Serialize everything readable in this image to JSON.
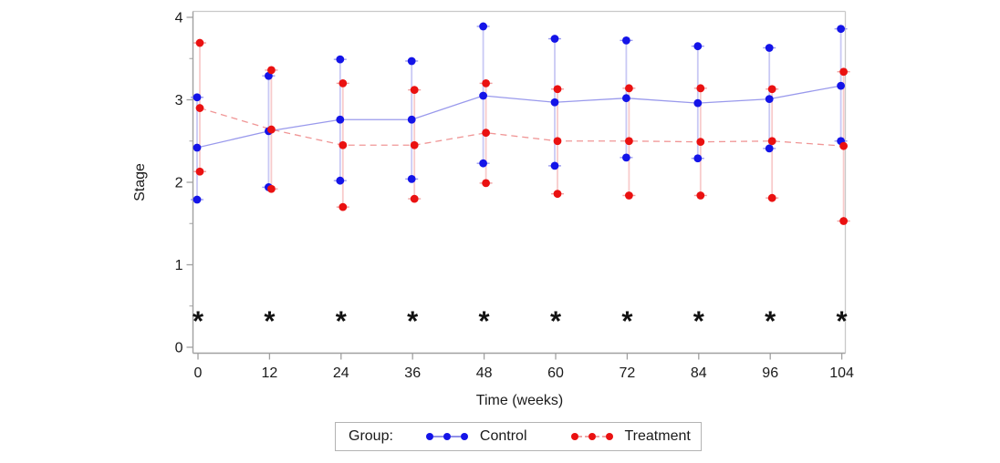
{
  "chart_data": {
    "type": "line",
    "title": "",
    "xlabel": "Time (weeks)",
    "ylabel": "Stage",
    "x_categories": [
      0,
      12,
      24,
      36,
      48,
      60,
      72,
      84,
      96,
      104
    ],
    "yticks": [
      0,
      1,
      2,
      3,
      4
    ],
    "yminor": [
      0.5,
      1.5,
      2.5,
      3.5
    ],
    "ylim": [
      0,
      4
    ],
    "grid": "off",
    "frame": true,
    "significance_marker": "*",
    "significance_y": 0.37,
    "significant_weeks": [
      0,
      12,
      24,
      36,
      48,
      60,
      72,
      84,
      96,
      104
    ],
    "marker_color_significance": "#111111",
    "series": [
      {
        "name": "Control",
        "color": "#1414e8",
        "bar_color": "#c9c9f4",
        "cap_color": "#9a9af0",
        "line_color": "rgba(70,70,220,0.55)",
        "dash": "",
        "mean": [
          2.42,
          2.62,
          2.76,
          2.76,
          3.05,
          2.97,
          3.02,
          2.96,
          3.01,
          3.17
        ],
        "upper": [
          3.03,
          3.29,
          3.49,
          3.47,
          3.89,
          3.74,
          3.72,
          3.65,
          3.63,
          3.86
        ],
        "lower": [
          1.79,
          1.94,
          2.02,
          2.04,
          2.23,
          2.2,
          2.3,
          2.29,
          2.41,
          2.5
        ]
      },
      {
        "name": "Treatment",
        "color": "#ea1111",
        "bar_color": "#f8cbcb",
        "cap_color": "#f0a0a0",
        "line_color": "rgba(230,80,80,0.6)",
        "dash": "7,5",
        "mean": [
          2.9,
          2.64,
          2.45,
          2.45,
          2.6,
          2.5,
          2.5,
          2.49,
          2.5,
          2.44
        ],
        "upper": [
          3.69,
          3.36,
          3.2,
          3.12,
          3.2,
          3.13,
          3.14,
          3.14,
          3.13,
          3.34
        ],
        "lower": [
          2.13,
          1.92,
          1.7,
          1.8,
          1.99,
          1.86,
          1.84,
          1.84,
          1.81,
          1.53
        ]
      }
    ],
    "legend": {
      "title": "Group:",
      "position": "bottom",
      "entries": [
        "Control",
        "Treatment"
      ]
    },
    "axis_colors": {
      "axis_line": "#a0a0a0",
      "frame_line": "#c9c9c9",
      "tick_label": "#1a1a1a"
    }
  }
}
